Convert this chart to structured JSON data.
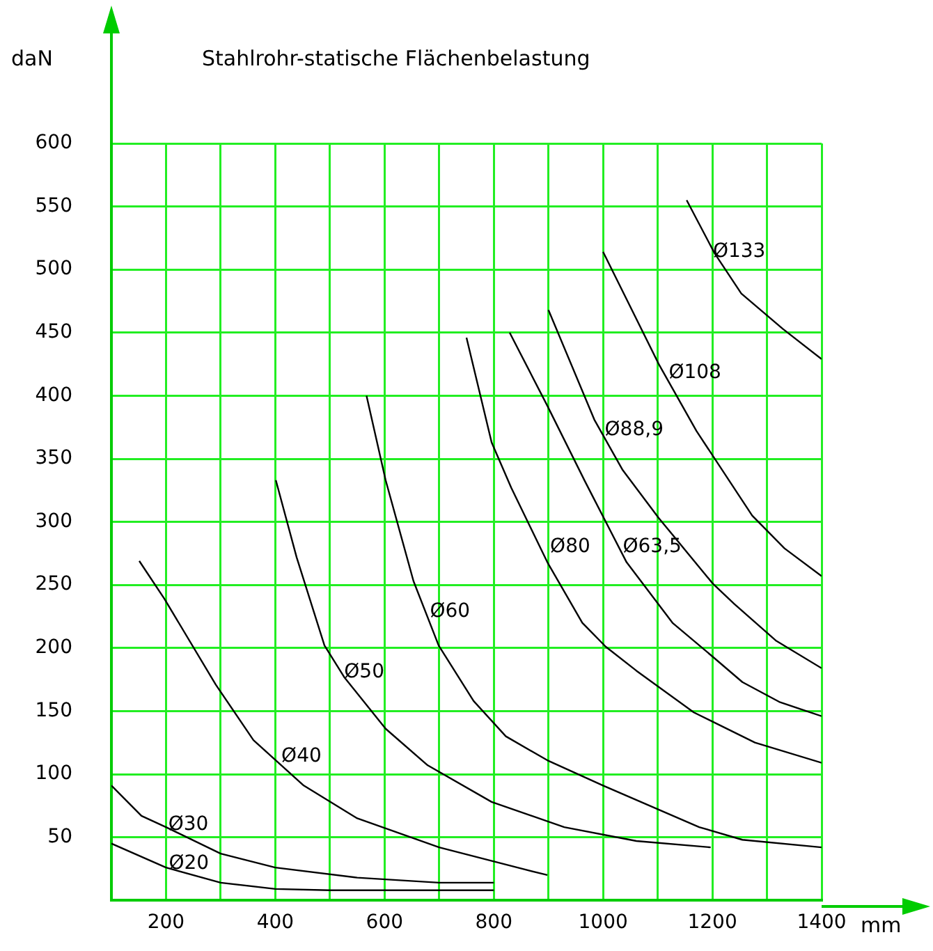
{
  "chart_data": {
    "type": "line",
    "title": "Stahlrohr-statische Flächenbelastung",
    "ylabel": "daN",
    "xlabel": "mm",
    "xlim": [
      100,
      1400
    ],
    "xticks": [
      {
        "value": 100,
        "label": null
      },
      200,
      {
        "value": 300,
        "label": null
      },
      400,
      {
        "value": 500,
        "label": null
      },
      600,
      {
        "value": 700,
        "label": null
      },
      800,
      {
        "value": 900,
        "label": null
      },
      1000,
      {
        "value": 1100,
        "label": null
      },
      1200,
      {
        "value": 1300,
        "label": null
      },
      1400
    ],
    "ylim": [
      0,
      600
    ],
    "yticks": [
      50,
      100,
      150,
      200,
      250,
      300,
      350,
      400,
      450,
      500,
      550,
      600
    ],
    "grid": true,
    "legend": false,
    "marker": "none",
    "line_style": "solid",
    "series": [
      {
        "color": "#000000",
        "x": [
          100,
          200,
          300,
          400,
          500,
          600,
          700,
          800
        ],
        "values": [
          45,
          26,
          14,
          9,
          8,
          8,
          8,
          8
        ]
      },
      {
        "color": "#000000",
        "x": [
          100,
          155,
          200,
          300,
          400,
          550,
          700,
          800
        ],
        "values": [
          91,
          67,
          58,
          37,
          26,
          18,
          14,
          14
        ]
      },
      {
        "color": "#000000",
        "x": [
          151,
          197,
          291,
          360,
          452,
          550,
          700,
          852,
          898
        ],
        "values": [
          269,
          239,
          171,
          127,
          91,
          65,
          42,
          25,
          20
        ]
      },
      {
        "color": "#000000",
        "x": [
          401,
          439,
          490,
          526,
          602,
          679,
          796,
          929,
          1061,
          1197
        ],
        "values": [
          333,
          272,
          202,
          177,
          136,
          107,
          78,
          58,
          47,
          42
        ]
      },
      {
        "color": "#000000",
        "x": [
          567,
          602,
          653,
          699,
          763,
          822,
          898,
          1000,
          1176,
          1255,
          1400
        ],
        "values": [
          400,
          333,
          253,
          202,
          158,
          130,
          111,
          91,
          58,
          48,
          42
        ]
      },
      {
        "color": "#000000",
        "x": [
          750,
          796,
          832,
          898,
          962,
          1005,
          1061,
          1166,
          1278,
          1400
        ],
        "values": [
          446,
          363,
          327,
          268,
          220,
          201,
          182,
          149,
          125,
          109
        ]
      },
      {
        "color": "#000000",
        "x": [
          829,
          898,
          967,
          1043,
          1127,
          1201,
          1255,
          1324,
          1400
        ],
        "values": [
          450,
          392,
          332,
          268,
          220,
          193,
          173,
          157,
          146
        ]
      },
      {
        "color": "#000000",
        "x": [
          900,
          984,
          1036,
          1102,
          1201,
          1240,
          1316,
          1400
        ],
        "values": [
          468,
          381,
          341,
          303,
          251,
          235,
          206,
          184
        ]
      },
      {
        "color": "#000000",
        "x": [
          1000,
          1102,
          1171,
          1273,
          1332,
          1400
        ],
        "values": [
          514,
          425,
          372,
          305,
          279,
          257
        ]
      },
      {
        "color": "#000000",
        "x": [
          1153,
          1204,
          1253,
          1329,
          1400
        ],
        "values": [
          555,
          513,
          481,
          453,
          429
        ]
      }
    ],
    "annotations": [
      {
        "text": "Ø20",
        "x": 200,
        "y": 29
      },
      {
        "text": "Ø30",
        "x": 199,
        "y": 60
      },
      {
        "text": "Ø40",
        "x": 406,
        "y": 114
      },
      {
        "text": "Ø50",
        "x": 521,
        "y": 181
      },
      {
        "text": "Ø60",
        "x": 678,
        "y": 229
      },
      {
        "text": "Ø80",
        "x": 898,
        "y": 280
      },
      {
        "text": "Ø63,5",
        "x": 1031,
        "y": 280
      },
      {
        "text": "Ø88,9",
        "x": 998,
        "y": 373
      },
      {
        "text": "Ø108",
        "x": 1115,
        "y": 418
      },
      {
        "text": "Ø133",
        "x": 1196,
        "y": 514
      }
    ]
  }
}
